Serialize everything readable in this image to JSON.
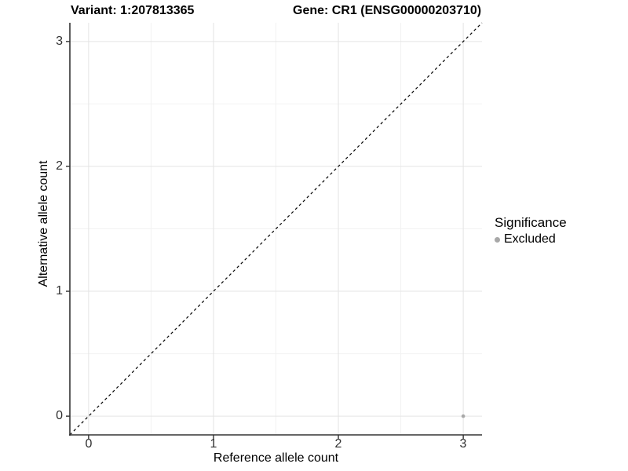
{
  "titles": {
    "variant": "Variant: 1:207813365",
    "gene": "Gene: CR1 (ENSG00000203710)"
  },
  "legend": {
    "title": "Significance",
    "items": [
      {
        "label": "Excluded",
        "color": "#a8a8a8"
      }
    ]
  },
  "chart_data": {
    "type": "scatter",
    "title_left": "Variant: 1:207813365",
    "title_right": "Gene: CR1 (ENSG00000203710)",
    "xlabel": "Reference allele count",
    "ylabel": "Alternative allele count",
    "x_ticks": [
      "0",
      "1",
      "2",
      "3"
    ],
    "y_ticks": [
      "0",
      "1",
      "2",
      "3"
    ],
    "xlim": [
      -0.15,
      3.15
    ],
    "ylim": [
      -0.15,
      3.15
    ],
    "grid": "major+minor",
    "legend_position": "right",
    "series": [
      {
        "name": "Excluded",
        "color": "#a8a8a8",
        "points": [
          {
            "x": 3,
            "y": 0
          }
        ]
      }
    ],
    "reference_line": {
      "kind": "identity",
      "style": "dashed",
      "color": "#000000"
    }
  }
}
